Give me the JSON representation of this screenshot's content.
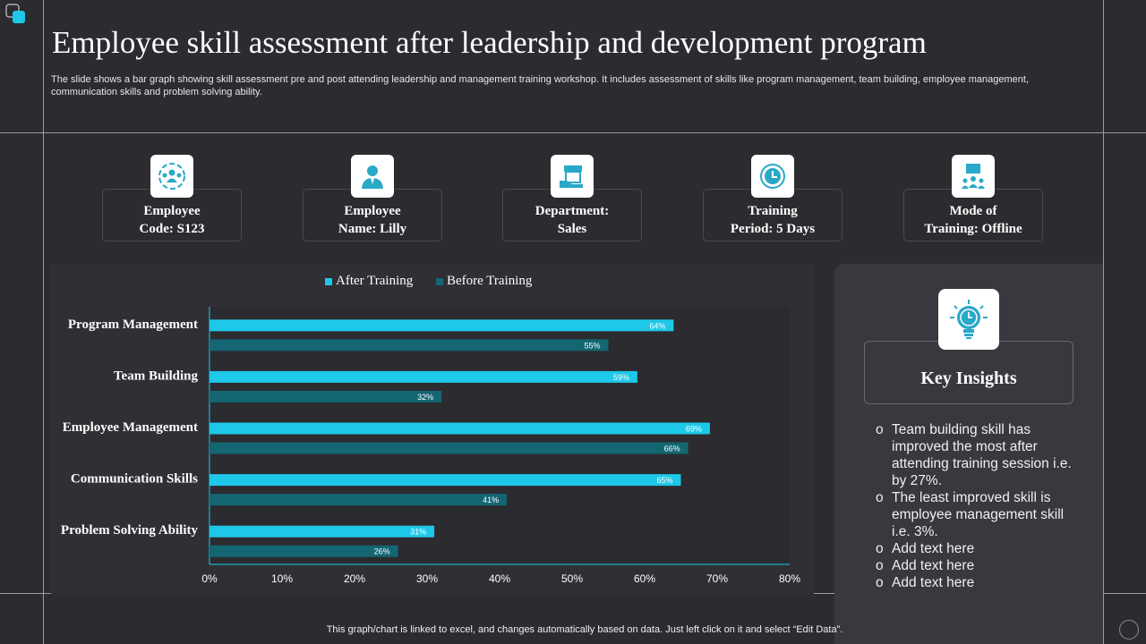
{
  "slide": {
    "title": "Employee skill assessment after leadership and development program",
    "subtitle": "The slide shows a bar graph showing skill assessment pre and post attending leadership and management training workshop. It includes assessment of skills like program management, team building, employee management, communication skills and problem solving ability.",
    "footer": "This graph/chart is linked to excel,  and changes automatically based on data. Just left click on it and select “Edit Data”."
  },
  "cards": [
    {
      "label": "Employee",
      "value": "Code: S123",
      "icon": "team-icon"
    },
    {
      "label": "Employee",
      "value": "Name: Lilly",
      "icon": "person-icon"
    },
    {
      "label": "Department:",
      "value": "Sales",
      "icon": "store-icon"
    },
    {
      "label": "Training",
      "value": "Period:  5 Days",
      "icon": "clock-icon"
    },
    {
      "label": "Mode of",
      "value": "Training:  Offline",
      "icon": "presentation-icon"
    }
  ],
  "insights": {
    "title": "Key Insights",
    "icon": "lightbulb-clock-icon",
    "items": [
      "Team building skill has improved the most after attending training session i.e. by 27%.",
      "The least improved skill is employee management skill i.e. 3%.",
      "Add text here",
      "Add text here",
      "Add text here"
    ]
  },
  "chart_data": {
    "type": "bar",
    "orientation": "horizontal",
    "categories": [
      "Program Management",
      "Team Building",
      "Employee Management",
      "Communication Skills",
      "Problem Solving Ability"
    ],
    "series": [
      {
        "name": "After Training",
        "color": "#1ec8e8",
        "values": [
          64,
          59,
          69,
          65,
          31
        ],
        "labels": [
          "64%",
          "59%",
          "69%",
          "65%",
          "31%"
        ]
      },
      {
        "name": "Before Training",
        "color": "#136672",
        "values": [
          55,
          32,
          66,
          41,
          26
        ],
        "labels": [
          "55%",
          "32%",
          "66%",
          "41%",
          "26%"
        ]
      }
    ],
    "xlim": [
      0,
      80
    ],
    "xticks": [
      0,
      10,
      20,
      30,
      40,
      50,
      60,
      70,
      80
    ],
    "xtick_labels": [
      "0%",
      "10%",
      "20%",
      "30%",
      "40%",
      "50%",
      "60%",
      "70%",
      "80%"
    ],
    "legend": "top",
    "grid": false
  }
}
